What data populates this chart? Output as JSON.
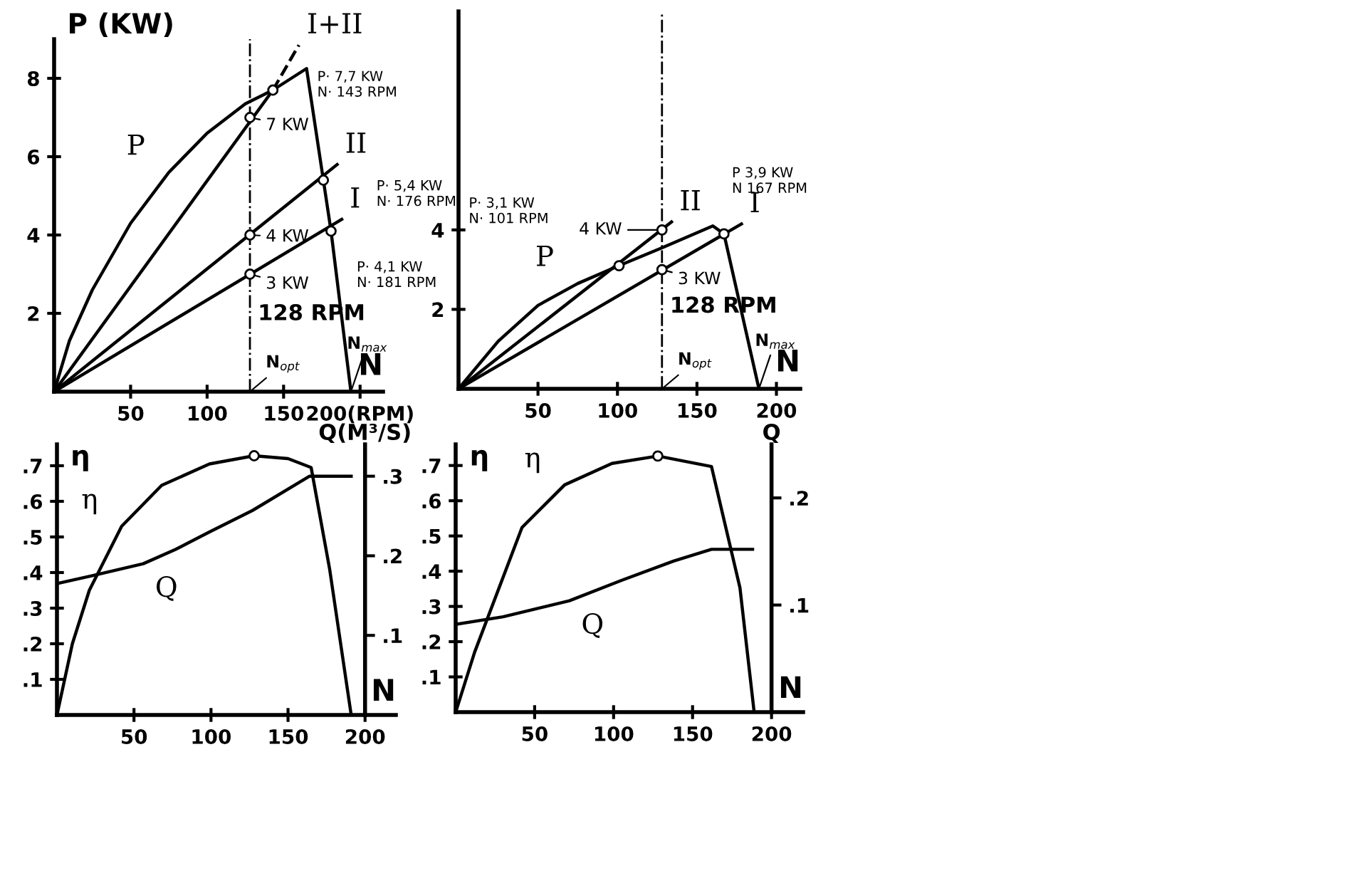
{
  "chart_data": [
    {
      "type": "line",
      "xlabel": "N",
      "ylabel": "P (KW)",
      "xlim": [
        0,
        215
      ],
      "ylim": [
        0,
        9
      ],
      "xticks": [
        50,
        100,
        150,
        {
          "value": 200,
          "label": "200(RPM)"
        }
      ],
      "yticks": [
        2,
        4,
        6,
        8
      ],
      "series": [
        {
          "name": "P",
          "color": "#000000",
          "x": [
            0,
            10,
            25,
            50,
            75,
            100,
            125,
            143,
            165,
            176,
            181,
            194
          ],
          "values": [
            0,
            1.3,
            2.6,
            4.3,
            5.6,
            6.6,
            7.35,
            7.7,
            8.25,
            5.4,
            4.1,
            0
          ]
        },
        {
          "name": "I",
          "color": "#000000",
          "x": [
            0,
            188
          ],
          "values": [
            0,
            4.4
          ]
        },
        {
          "name": "II",
          "color": "#000000",
          "x": [
            0,
            185
          ],
          "values": [
            0,
            5.8
          ]
        },
        {
          "color": "#000000",
          "x": [
            0,
            143
          ],
          "values": [
            0,
            7.7
          ]
        },
        {
          "name": "I+II",
          "color": "#000000",
          "line_style": "dashed",
          "x": [
            143,
            160
          ],
          "values": [
            7.7,
            8.85
          ]
        },
        {
          "type": "scatter",
          "color": "#000000",
          "x": [
            128,
            128,
            128,
            143,
            176,
            181
          ],
          "values": [
            7,
            4,
            3,
            7.7,
            5.4,
            4.1
          ]
        }
      ],
      "ref_lines": [
        {
          "axis": "x",
          "value": 128,
          "label": "128 RPM",
          "line_style": "dashdot"
        }
      ],
      "annotations": [
        {
          "text": "7 KW",
          "x": 128,
          "y": 7
        },
        {
          "text": "4 KW",
          "x": 128,
          "y": 4
        },
        {
          "text": "3 KW",
          "x": 128,
          "y": 3
        },
        "P· 7,7 KW\nN· 143 RPM",
        "P· 5,4 KW\nN· 176 RPM",
        "P· 4,1 KW\nN· 181 RPM",
        {
          "text": "N$_{opt}$",
          "x": 128,
          "y": 0
        },
        {
          "text": "N$_{max}$",
          "x": 194,
          "y": 0
        }
      ]
    },
    {
      "type": "line",
      "xlabel": "N",
      "xlim": [
        0,
        215
      ],
      "ylim": [
        0,
        9.5
      ],
      "xticks": [
        50,
        100,
        150,
        200
      ],
      "yticks": [
        2,
        4
      ],
      "series": [
        {
          "name": "P",
          "color": "#000000",
          "x": [
            0,
            25,
            50,
            75,
            101,
            128,
            160,
            167,
            189
          ],
          "values": [
            0,
            1.2,
            2.1,
            2.65,
            3.1,
            3.55,
            4.1,
            3.9,
            0
          ]
        },
        {
          "name": "I",
          "color": "#000000",
          "x": [
            0,
            178
          ],
          "values": [
            0,
            4.15
          ]
        },
        {
          "name": "II",
          "color": "#000000",
          "x": [
            0,
            134
          ],
          "values": [
            0,
            4.2
          ]
        },
        {
          "type": "scatter",
          "color": "#000000",
          "x": [
            101,
            128,
            128,
            167
          ],
          "values": [
            3.1,
            4,
            3,
            3.9
          ]
        }
      ],
      "ref_lines": [
        {
          "axis": "x",
          "value": 128,
          "label": "128 RPM",
          "line_style": "dashdot"
        }
      ],
      "annotations": [
        {
          "text": "4 KW",
          "x": 128,
          "y": 4
        },
        {
          "text": "3 KW",
          "x": 128,
          "y": 3
        },
        "P· 3,1 KW\nN· 101 RPM",
        "P 3,9 KW\nN 167 RPM",
        {
          "text": "N$_{opt}$",
          "x": 128,
          "y": 0
        },
        {
          "text": "N$_{max}$",
          "x": 189,
          "y": 0
        }
      ]
    },
    {
      "type": "line",
      "xlabel": "N",
      "ylabel": "η",
      "y2label": "Q(M³/S)",
      "xlim": [
        0,
        220
      ],
      "ylim": [
        0,
        0.76
      ],
      "y2lim": [
        0,
        0.34
      ],
      "xticks": [
        50,
        100,
        150,
        200
      ],
      "yticks": [
        {
          "value": 0.1,
          "label": ".1"
        },
        {
          "value": 0.2,
          "label": ".2"
        },
        {
          "value": 0.3,
          "label": ".3"
        },
        {
          "value": 0.4,
          "label": ".4"
        },
        {
          "value": 0.5,
          "label": ".5"
        },
        {
          "value": 0.6,
          "label": ".6"
        },
        {
          "value": 0.7,
          "label": ".7"
        }
      ],
      "y2ticks": [
        {
          "value": 0.1,
          "label": ".1"
        },
        {
          "value": 0.2,
          "label": ".2"
        },
        {
          "value": 0.3,
          "label": ".3"
        }
      ],
      "series": [
        {
          "name": "η",
          "color": "#000000",
          "x": [
            0,
            10,
            21,
            42,
            68,
            99,
            128,
            150,
            165,
            177,
            191
          ],
          "values": [
            0,
            0.2,
            0.35,
            0.53,
            0.645,
            0.705,
            0.728,
            0.72,
            0.695,
            0.41,
            0
          ]
        },
        {
          "name": "Q",
          "color": "#000000",
          "axis": "y2",
          "x": [
            0,
            23,
            56,
            77,
            99,
            127,
            164,
            191
          ],
          "values": [
            0.165,
            0.175,
            0.19,
            0.208,
            0.23,
            0.257,
            0.3,
            0.3
          ]
        },
        {
          "type": "scatter",
          "color": "#000000",
          "x": [
            128
          ],
          "values": [
            0.728
          ]
        }
      ]
    },
    {
      "type": "line",
      "xlabel": "N",
      "ylabel": "η",
      "y2label": "Q",
      "xlim": [
        0,
        220
      ],
      "ylim": [
        0,
        0.76
      ],
      "y2lim": [
        0,
        0.25
      ],
      "xticks": [
        50,
        100,
        150,
        200
      ],
      "yticks": [
        {
          "value": 0.1,
          "label": ".1"
        },
        {
          "value": 0.2,
          "label": ".2"
        },
        {
          "value": 0.3,
          "label": ".3"
        },
        {
          "value": 0.4,
          "label": ".4"
        },
        {
          "value": 0.5,
          "label": ".5"
        },
        {
          "value": 0.6,
          "label": ".6"
        },
        {
          "value": 0.7,
          "label": ".7"
        }
      ],
      "y2ticks": [
        {
          "value": 0.1,
          "label": ".1"
        },
        {
          "value": 0.2,
          "label": ".2"
        }
      ],
      "series": [
        {
          "name": "η",
          "color": "#000000",
          "x": [
            0,
            12,
            42,
            69,
            99,
            128,
            162,
            180,
            189
          ],
          "values": [
            0,
            0.17,
            0.524,
            0.645,
            0.706,
            0.727,
            0.697,
            0.353,
            0
          ]
        },
        {
          "name": "Q",
          "color": "#000000",
          "axis": "y2",
          "x": [
            0,
            30,
            72,
            105,
            138,
            162,
            188
          ],
          "values": [
            0.082,
            0.089,
            0.104,
            0.123,
            0.141,
            0.152,
            0.152
          ]
        },
        {
          "type": "scatter",
          "color": "#000000",
          "x": [
            128
          ],
          "values": [
            0.727
          ]
        }
      ]
    }
  ]
}
